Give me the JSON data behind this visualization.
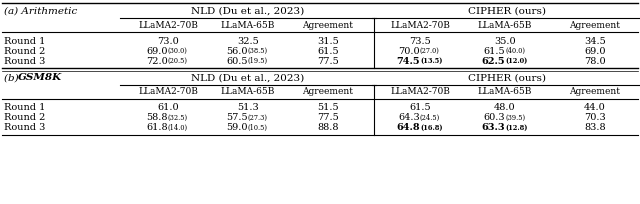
{
  "title_a": "(a) Arithmetic",
  "title_b_pre": "(b) ",
  "title_b_bold": "GSM8K",
  "group_nld": "NLD (Du et al., 2023)",
  "group_cipher": "CIPHER (ours)",
  "col_headers": [
    "LLaMA2-70B",
    "LLaMA-65B",
    "Agreement",
    "LLaMA2-70B",
    "LLaMA-65B",
    "Agreement"
  ],
  "row_labels": [
    "Round 1",
    "Round 2",
    "Round 3"
  ],
  "arith_data": [
    [
      [
        "73.0",
        ""
      ],
      [
        "32.5",
        ""
      ],
      [
        "31.5",
        ""
      ],
      [
        "73.5",
        ""
      ],
      [
        "35.0",
        ""
      ],
      [
        "34.5",
        ""
      ]
    ],
    [
      [
        "69.0",
        "30.0"
      ],
      [
        "56.0",
        "38.5"
      ],
      [
        "61.5",
        ""
      ],
      [
        "70.0",
        "27.0"
      ],
      [
        "61.5",
        "40.0"
      ],
      [
        "69.0",
        ""
      ]
    ],
    [
      [
        "72.0",
        "20.5"
      ],
      [
        "60.5",
        "19.5"
      ],
      [
        "77.5",
        ""
      ],
      [
        "74.5",
        "13.5"
      ],
      [
        "62.5",
        "12.0"
      ],
      [
        "78.0",
        ""
      ]
    ]
  ],
  "gsm_data": [
    [
      [
        "61.0",
        ""
      ],
      [
        "51.3",
        ""
      ],
      [
        "51.5",
        ""
      ],
      [
        "61.5",
        ""
      ],
      [
        "48.0",
        ""
      ],
      [
        "44.0",
        ""
      ]
    ],
    [
      [
        "58.8",
        "32.5"
      ],
      [
        "57.5",
        "27.3"
      ],
      [
        "77.5",
        ""
      ],
      [
        "64.3",
        "24.5"
      ],
      [
        "60.3",
        "39.5"
      ],
      [
        "70.3",
        ""
      ]
    ],
    [
      [
        "61.8",
        "14.0"
      ],
      [
        "59.0",
        "10.5"
      ],
      [
        "88.8",
        ""
      ],
      [
        "64.8",
        "16.8"
      ],
      [
        "63.3",
        "12.8"
      ],
      [
        "83.8",
        ""
      ]
    ]
  ],
  "bold_arith": [
    [
      false,
      false,
      false,
      false,
      false,
      false
    ],
    [
      false,
      false,
      false,
      false,
      false,
      false
    ],
    [
      false,
      false,
      false,
      true,
      true,
      false
    ]
  ],
  "bold_gsm": [
    [
      false,
      false,
      false,
      false,
      false,
      false
    ],
    [
      false,
      false,
      false,
      false,
      false,
      false
    ],
    [
      false,
      false,
      false,
      true,
      true,
      false
    ]
  ]
}
